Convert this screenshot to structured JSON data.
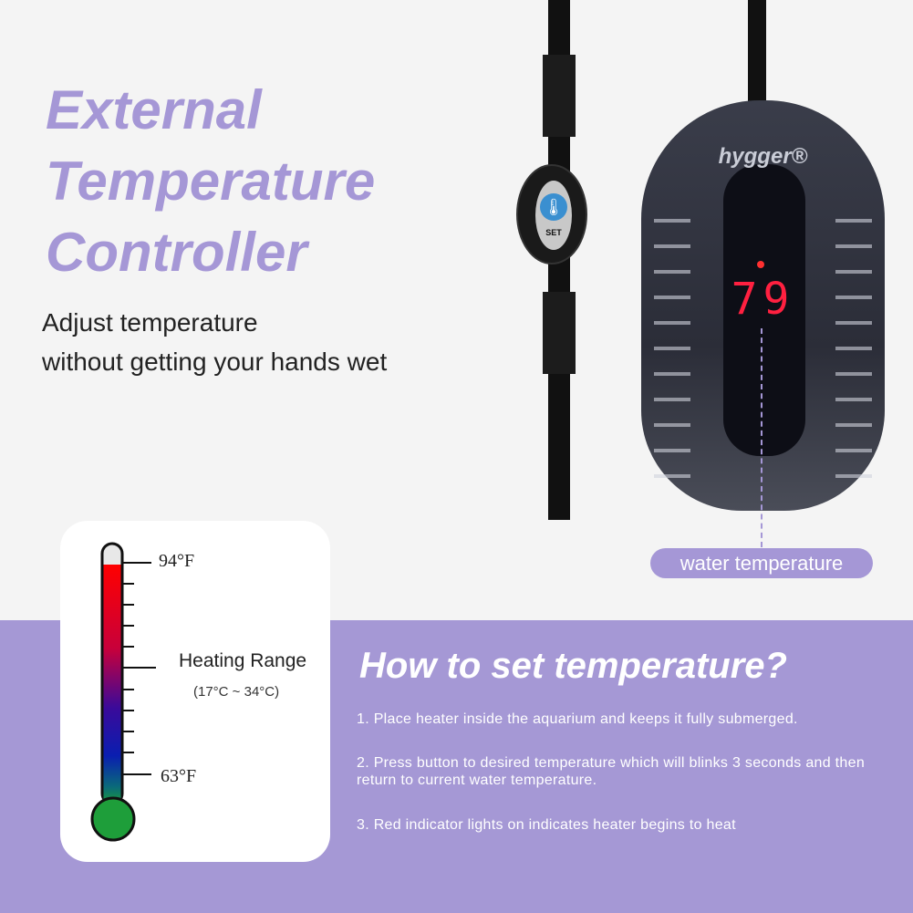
{
  "headline": {
    "line1": "External",
    "line2": "Temperature",
    "line3": "Controller"
  },
  "subtitle": {
    "line1": "Adjust temperature",
    "line2": "without getting your hands wet"
  },
  "controller": {
    "button_label": "SET",
    "icon": "thermometer-celsius-icon"
  },
  "heater": {
    "brand": "hygger®",
    "display_value": "79"
  },
  "callout": "water temperature",
  "thermometer": {
    "max_label": "94°F",
    "min_label": "63°F",
    "range_title": "Heating Range",
    "range_celsius": "(17°C ~ 34°C)"
  },
  "instructions": {
    "title": "How to set temperature?",
    "steps": [
      "1. Place heater inside the aquarium and keeps it fully submerged.",
      "2. Press button to desired temperature which will blinks 3 seconds and then return to current water temperature.",
      "3. Red indicator lights on indicates heater begins to heat"
    ]
  },
  "colors": {
    "accent": "#a597d6",
    "band": "#a598d5",
    "display": "#ff2040"
  }
}
